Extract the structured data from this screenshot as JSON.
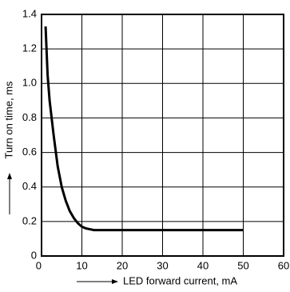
{
  "chart_data": {
    "type": "line",
    "xlabel": "LED forward current, mA",
    "ylabel": "Turn on time, ms",
    "x": [
      1,
      1.5,
      2,
      3,
      4,
      5,
      6,
      7,
      8,
      9,
      10,
      11,
      12,
      13,
      20,
      30,
      40,
      50
    ],
    "series": [
      {
        "color": "#000000",
        "values": [
          1.33,
          1.05,
          0.9,
          0.7,
          0.52,
          0.4,
          0.32,
          0.26,
          0.22,
          0.19,
          0.17,
          0.16,
          0.155,
          0.15,
          0.15,
          0.15,
          0.15,
          0.15
        ]
      }
    ],
    "xlim": [
      0,
      60
    ],
    "xticks": [
      0,
      10,
      20,
      30,
      40,
      50,
      60
    ],
    "ylim": [
      0,
      1.4
    ],
    "yticks": [
      0,
      0.2,
      0.4,
      0.6,
      0.8,
      {
        "value": 1,
        "label": "1.0"
      },
      1.2,
      1.4
    ],
    "grid": true
  }
}
